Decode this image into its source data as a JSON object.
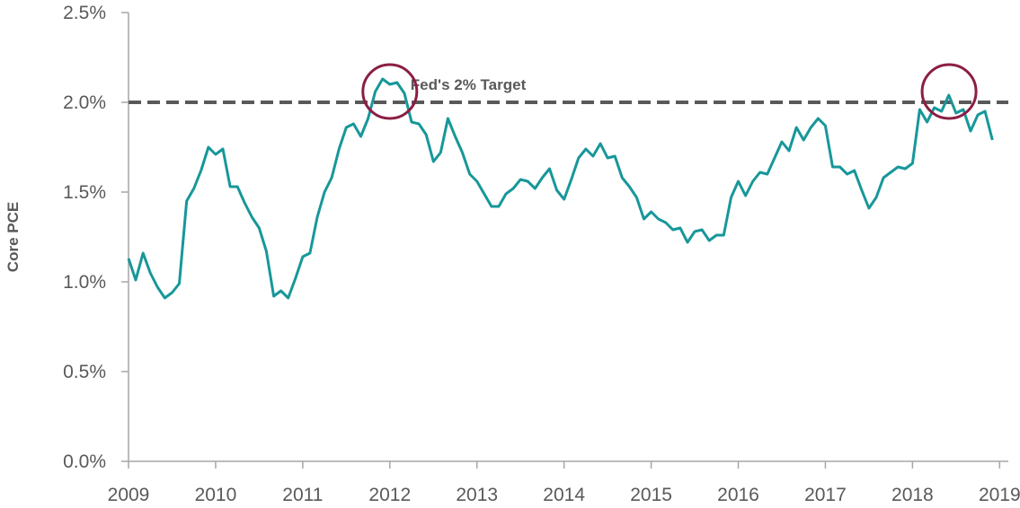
{
  "chart_data": {
    "type": "line",
    "title": "",
    "xlabel": "",
    "ylabel": "Core PCE",
    "xlim": [
      2009,
      2019.1
    ],
    "ylim": [
      0,
      2.5
    ],
    "grid": false,
    "legend": "none",
    "y_ticks": [
      {
        "value": 0.0,
        "label": "0.0%"
      },
      {
        "value": 0.5,
        "label": "0.5%"
      },
      {
        "value": 1.0,
        "label": "1.0%"
      },
      {
        "value": 1.5,
        "label": "1.5%"
      },
      {
        "value": 2.0,
        "label": "2.0%"
      },
      {
        "value": 2.5,
        "label": "2.5%"
      }
    ],
    "x_ticks": [
      {
        "value": 2009,
        "label": "2009"
      },
      {
        "value": 2010,
        "label": "2010"
      },
      {
        "value": 2011,
        "label": "2011"
      },
      {
        "value": 2012,
        "label": "2012"
      },
      {
        "value": 2013,
        "label": "2013"
      },
      {
        "value": 2014,
        "label": "2014"
      },
      {
        "value": 2015,
        "label": "2015"
      },
      {
        "value": 2016,
        "label": "2016"
      },
      {
        "value": 2017,
        "label": "2017"
      },
      {
        "value": 2018,
        "label": "2018"
      },
      {
        "value": 2019,
        "label": "2019"
      }
    ],
    "series": [
      {
        "color": "#17979a",
        "x": [
          2009.0,
          2009.083,
          2009.167,
          2009.25,
          2009.333,
          2009.417,
          2009.5,
          2009.583,
          2009.667,
          2009.75,
          2009.833,
          2009.917,
          2010.0,
          2010.083,
          2010.167,
          2010.25,
          2010.333,
          2010.417,
          2010.5,
          2010.583,
          2010.667,
          2010.75,
          2010.833,
          2010.917,
          2011.0,
          2011.083,
          2011.167,
          2011.25,
          2011.333,
          2011.417,
          2011.5,
          2011.583,
          2011.667,
          2011.75,
          2011.833,
          2011.917,
          2012.0,
          2012.083,
          2012.167,
          2012.25,
          2012.333,
          2012.417,
          2012.5,
          2012.583,
          2012.667,
          2012.75,
          2012.833,
          2012.917,
          2013.0,
          2013.083,
          2013.167,
          2013.25,
          2013.333,
          2013.417,
          2013.5,
          2013.583,
          2013.667,
          2013.75,
          2013.833,
          2013.917,
          2014.0,
          2014.083,
          2014.167,
          2014.25,
          2014.333,
          2014.417,
          2014.5,
          2014.583,
          2014.667,
          2014.75,
          2014.833,
          2014.917,
          2015.0,
          2015.083,
          2015.167,
          2015.25,
          2015.333,
          2015.417,
          2015.5,
          2015.583,
          2015.667,
          2015.75,
          2015.833,
          2015.917,
          2016.0,
          2016.083,
          2016.167,
          2016.25,
          2016.333,
          2016.417,
          2016.5,
          2016.583,
          2016.667,
          2016.75,
          2016.833,
          2016.917,
          2017.0,
          2017.083,
          2017.167,
          2017.25,
          2017.333,
          2017.417,
          2017.5,
          2017.583,
          2017.667,
          2017.75,
          2017.833,
          2017.917,
          2018.0,
          2018.083,
          2018.167,
          2018.25,
          2018.333,
          2018.417,
          2018.5,
          2018.583,
          2018.667,
          2018.75,
          2018.833,
          2018.917
        ],
        "y": [
          1.13,
          1.01,
          1.16,
          1.05,
          0.97,
          0.91,
          0.94,
          0.99,
          1.45,
          1.52,
          1.62,
          1.75,
          1.71,
          1.74,
          1.53,
          1.53,
          1.44,
          1.36,
          1.3,
          1.17,
          0.92,
          0.95,
          0.91,
          1.02,
          1.14,
          1.16,
          1.36,
          1.5,
          1.58,
          1.74,
          1.86,
          1.88,
          1.81,
          1.91,
          2.06,
          2.13,
          2.1,
          2.11,
          2.05,
          1.89,
          1.88,
          1.82,
          1.67,
          1.72,
          1.91,
          1.81,
          1.72,
          1.6,
          1.56,
          1.49,
          1.42,
          1.42,
          1.49,
          1.52,
          1.57,
          1.56,
          1.52,
          1.58,
          1.63,
          1.51,
          1.46,
          1.57,
          1.69,
          1.74,
          1.7,
          1.77,
          1.69,
          1.7,
          1.58,
          1.53,
          1.47,
          1.35,
          1.39,
          1.35,
          1.33,
          1.29,
          1.3,
          1.22,
          1.28,
          1.29,
          1.23,
          1.26,
          1.26,
          1.47,
          1.56,
          1.48,
          1.56,
          1.61,
          1.6,
          1.69,
          1.78,
          1.73,
          1.86,
          1.79,
          1.86,
          1.91,
          1.87,
          1.64,
          1.64,
          1.6,
          1.62,
          1.51,
          1.41,
          1.47,
          1.58,
          1.61,
          1.64,
          1.63,
          1.66,
          1.96,
          1.89,
          1.97,
          1.95,
          2.04,
          1.94,
          1.96,
          1.84,
          1.93,
          1.95,
          1.79
        ]
      }
    ],
    "annotations": [
      {
        "type": "hline",
        "y": 2.0,
        "text": "Fed's 2% Target",
        "color": "#595959",
        "style": "dashed"
      },
      {
        "type": "circle",
        "x": 2012.0,
        "y": 2.06,
        "color": "#8b1e45"
      },
      {
        "type": "circle",
        "x": 2018.42,
        "y": 2.06,
        "color": "#8b1e45"
      }
    ]
  }
}
